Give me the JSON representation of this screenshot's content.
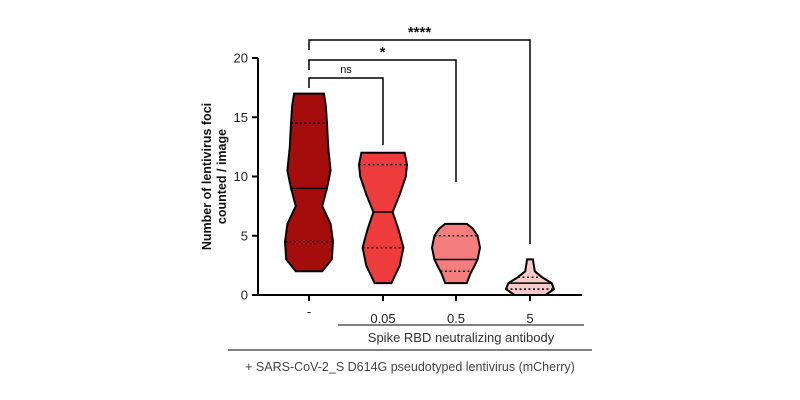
{
  "chart_data": {
    "type": "violin",
    "ylabel_lines": [
      "Number of lentivirus foci",
      "counted / image"
    ],
    "ylim": [
      0,
      20
    ],
    "yticks": [
      0,
      5,
      10,
      15,
      20
    ],
    "categories": [
      "-",
      "0.05",
      "0.5",
      "5"
    ],
    "group_label": "Spike RBD neutralizing antibody",
    "footer_label": "+ SARS-CoV-2_S D614G pseudotyped lentivirus (mCherry)",
    "violins": [
      {
        "category": "-",
        "min": 2,
        "max": 17,
        "median": 9,
        "q1": 4.5,
        "q3": 14.5,
        "color": "#a50d0d",
        "profile": [
          [
            2,
            0.55
          ],
          [
            3,
            0.95
          ],
          [
            4.5,
            1.0
          ],
          [
            6,
            0.9
          ],
          [
            7.5,
            0.55
          ],
          [
            9,
            0.75
          ],
          [
            10.5,
            0.9
          ],
          [
            12.5,
            0.8
          ],
          [
            14.5,
            0.75
          ],
          [
            16,
            0.7
          ],
          [
            17,
            0.62
          ]
        ]
      },
      {
        "category": "0.05",
        "min": 1,
        "max": 12,
        "median": 7,
        "q1": 4,
        "q3": 11,
        "color": "#ee3b3b",
        "profile": [
          [
            1,
            0.35
          ],
          [
            2.5,
            0.7
          ],
          [
            4,
            0.85
          ],
          [
            5.5,
            0.65
          ],
          [
            7,
            0.4
          ],
          [
            8.5,
            0.7
          ],
          [
            10,
            0.95
          ],
          [
            11,
            1.0
          ],
          [
            12,
            0.9
          ]
        ]
      },
      {
        "category": "0.5",
        "min": 1,
        "max": 6,
        "median": 3,
        "q1": 2,
        "q3": 5,
        "color": "#f47e7e",
        "profile": [
          [
            1,
            0.45
          ],
          [
            1.8,
            0.6
          ],
          [
            2.5,
            0.78
          ],
          [
            3,
            0.9
          ],
          [
            4,
            1.0
          ],
          [
            5,
            0.9
          ],
          [
            5.6,
            0.7
          ],
          [
            6,
            0.45
          ]
        ]
      },
      {
        "category": "5",
        "min": 0,
        "max": 3,
        "median": 1,
        "q1": 0.5,
        "q3": 1.5,
        "color": "#f9caca",
        "profile": [
          [
            0,
            0.65
          ],
          [
            0.5,
            1.0
          ],
          [
            1,
            0.9
          ],
          [
            1.5,
            0.5
          ],
          [
            2,
            0.2
          ],
          [
            3,
            0.12
          ]
        ]
      }
    ],
    "comparisons": [
      {
        "from": "-",
        "to": "0.05",
        "label": "ns"
      },
      {
        "from": "-",
        "to": "0.5",
        "label": "*"
      },
      {
        "from": "-",
        "to": "5",
        "label": "****"
      }
    ]
  }
}
